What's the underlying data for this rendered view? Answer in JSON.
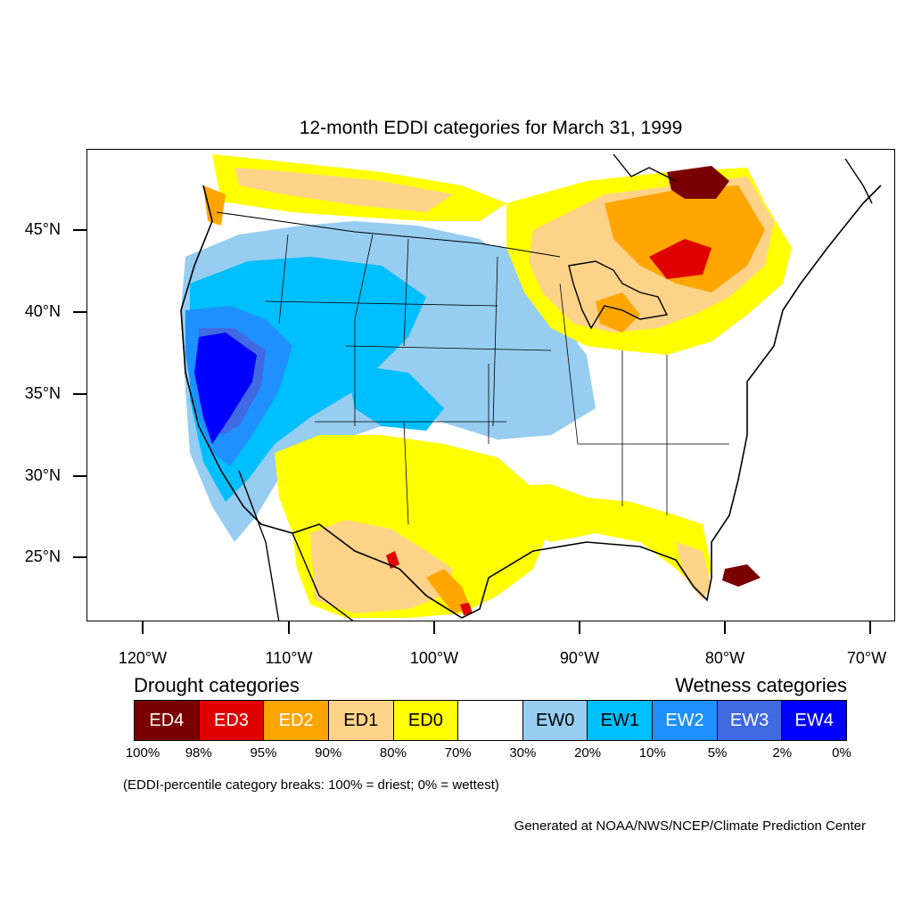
{
  "title": "12-month EDDI categories for March 31, 1999",
  "axes": {
    "lat_labels": [
      "45°N",
      "40°N",
      "35°N",
      "30°N",
      "25°N"
    ],
    "lon_labels": [
      "120°W",
      "110°W",
      "100°W",
      "90°W",
      "80°W",
      "70°W"
    ]
  },
  "legend": {
    "drought_heading": "Drought categories",
    "wetness_heading": "Wetness categories",
    "categories": [
      {
        "label": "ED4",
        "color": "#7a0000",
        "text_color": "#ffffff"
      },
      {
        "label": "ED3",
        "color": "#e00000",
        "text_color": "#ffffff"
      },
      {
        "label": "ED2",
        "color": "#ffa500",
        "text_color": "#ffffff"
      },
      {
        "label": "ED1",
        "color": "#fdd38a",
        "text_color": "#000000"
      },
      {
        "label": "ED0",
        "color": "#ffff00",
        "text_color": "#000000"
      },
      {
        "label": "",
        "color": "#ffffff",
        "text_color": "#000000"
      },
      {
        "label": "EW0",
        "color": "#96cdf0",
        "text_color": "#000000"
      },
      {
        "label": "EW1",
        "color": "#00bfff",
        "text_color": "#000000"
      },
      {
        "label": "EW2",
        "color": "#1e90ff",
        "text_color": "#ffffff"
      },
      {
        "label": "EW3",
        "color": "#4169e1",
        "text_color": "#ffffff"
      },
      {
        "label": "EW4",
        "color": "#0000ff",
        "text_color": "#ffffff"
      }
    ],
    "breaks": [
      "100%",
      "98%",
      "95%",
      "90%",
      "80%",
      "70%",
      "30%",
      "20%",
      "10%",
      "5%",
      "2%",
      "0%"
    ]
  },
  "note": "(EDDI-percentile category breaks: 100% = driest; 0% = wettest)",
  "credit": "Generated at NOAA/NWS/NCEP/Climate Prediction Center"
}
